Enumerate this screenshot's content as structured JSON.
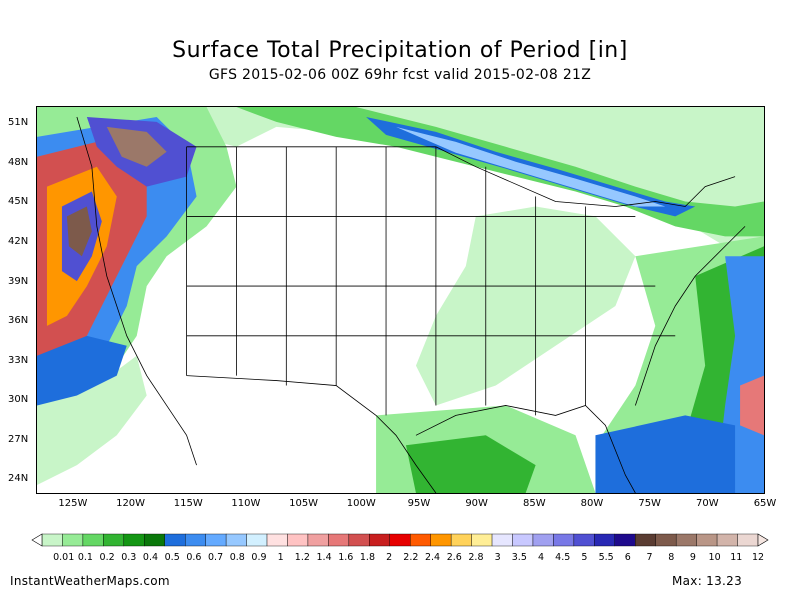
{
  "title": "Surface Total Precipitation of Period [in]",
  "subtitle": "GFS 2015-02-06 00Z 69hr fcst valid 2015-02-08 21Z",
  "lat_labels": [
    "51N",
    "48N",
    "45N",
    "42N",
    "39N",
    "36N",
    "33N",
    "30N",
    "27N",
    "24N"
  ],
  "lat_values": [
    51,
    48,
    45,
    42,
    39,
    36,
    33,
    30,
    27,
    24
  ],
  "lon_labels": [
    "125W",
    "120W",
    "115W",
    "110W",
    "105W",
    "100W",
    "95W",
    "90W",
    "85W",
    "80W",
    "75W",
    "70W",
    "65W"
  ],
  "lon_values": [
    -125,
    -120,
    -115,
    -110,
    -105,
    -100,
    -95,
    -90,
    -85,
    -80,
    -75,
    -70,
    -65
  ],
  "legend": {
    "labels": [
      "0.01",
      "0.1",
      "0.2",
      "0.3",
      "0.4",
      "0.5",
      "0.6",
      "0.7",
      "0.8",
      "0.9",
      "1",
      "1.2",
      "1.4",
      "1.6",
      "1.8",
      "2",
      "2.2",
      "2.4",
      "2.6",
      "2.8",
      "3",
      "3.5",
      "4",
      "4.5",
      "5",
      "5.5",
      "6",
      "7",
      "8",
      "9",
      "10",
      "11",
      "12"
    ],
    "colors": [
      "#c8f5c8",
      "#96eb96",
      "#64d764",
      "#32b432",
      "#149614",
      "#0a780a",
      "#1e6edc",
      "#3c8cf0",
      "#64aaff",
      "#96c8ff",
      "#d2f0ff",
      "#ffe1e1",
      "#ffc3c3",
      "#f0a0a0",
      "#e67878",
      "#d25050",
      "#c81e1e",
      "#e60000",
      "#ff5a00",
      "#ff9600",
      "#ffd25a",
      "#ffee96",
      "#e6e6ff",
      "#c8c8ff",
      "#a0a0f0",
      "#7878e6",
      "#5050d2",
      "#2828b4",
      "#1e0a8c",
      "#5a3c32",
      "#7d5a4b",
      "#9b7869",
      "#b99687",
      "#d2b4aa",
      "#ebd7d2"
    ]
  },
  "footer": {
    "site": "InstantWeatherMaps.com",
    "max": "Max: 13.23"
  },
  "colors": {
    "land": "#ffffff",
    "light_green": "#c8f5c8",
    "green": "#96eb96",
    "mid_green": "#64d764",
    "dark_green": "#32b432",
    "blue": "#1e6edc",
    "light_blue": "#96c8ff",
    "red": "#d25050",
    "purple": "#5050d2",
    "brown": "#7d5a4b"
  }
}
